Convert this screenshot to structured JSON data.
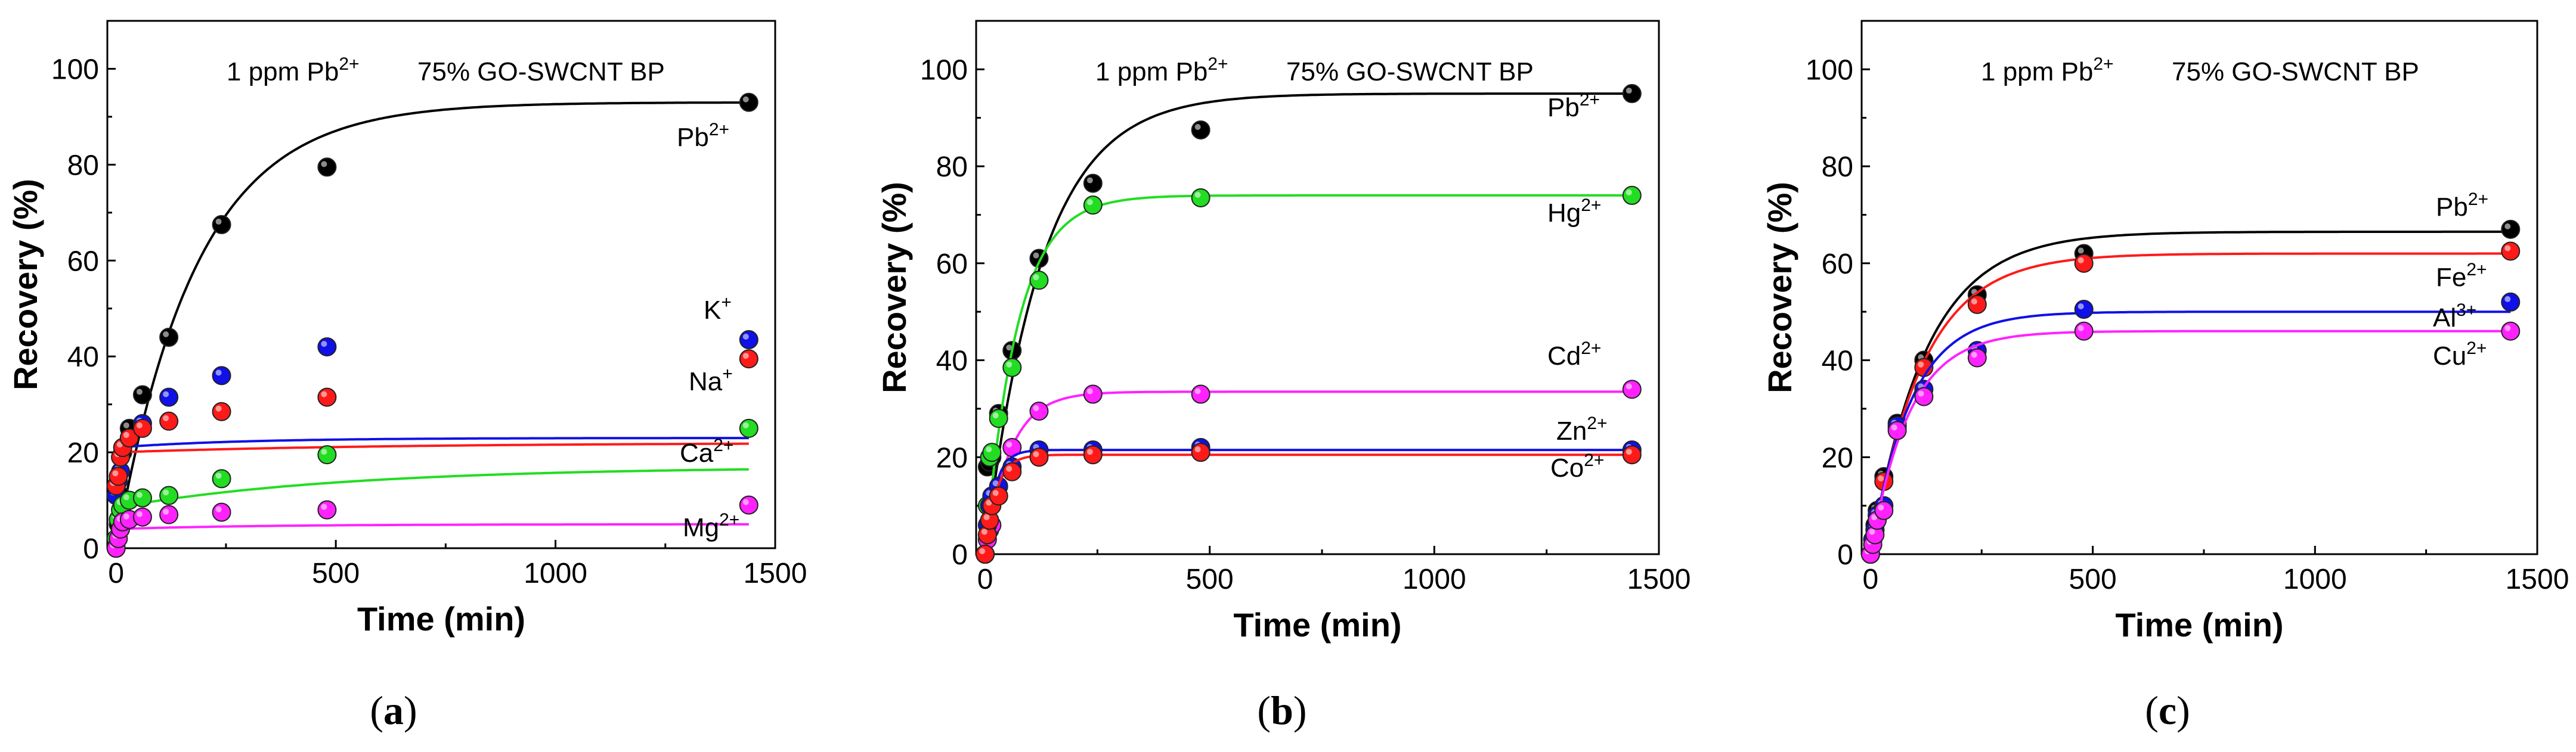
{
  "chart_data": [
    {
      "type": "scatter",
      "panel_label": "a",
      "annotation_left": "1 ppm Pb",
      "annotation_left_sup": "2+",
      "annotation_right": "75% GO-SWCNT BP",
      "xlabel": "Time (min)",
      "ylabel": "Recovery (%)",
      "xlim": [
        -20,
        1500
      ],
      "ylim": [
        0,
        110
      ],
      "xticks": [
        0,
        500,
        1000,
        1500
      ],
      "yticks": [
        0,
        20,
        40,
        60,
        80,
        100
      ],
      "x": [
        0,
        5,
        10,
        15,
        30,
        60,
        120,
        240,
        480,
        1440
      ],
      "series": [
        {
          "name": "Pb",
          "charge": "2+",
          "color": "#000000",
          "values": [
            0,
            5,
            11,
            20,
            25,
            32,
            44,
            67.5,
            79.5,
            93
          ],
          "fit": [
            93,
            0.0055,
            0
          ]
        },
        {
          "name": "K",
          "charge": "+",
          "color": "#1010e8",
          "values": [
            11,
            14,
            16,
            21,
            23,
            26,
            31.5,
            36,
            42,
            43.5
          ],
          "fit": [
            23,
            0.0035,
            21
          ]
        },
        {
          "name": "Na",
          "charge": "+",
          "color": "#ff1a1a",
          "values": [
            13,
            15,
            19,
            21,
            23,
            25,
            26.5,
            28.5,
            31.5,
            39.5
          ],
          "fit": [
            22,
            0.0016,
            20
          ]
        },
        {
          "name": "Ca",
          "charge": "2+",
          "color": "#22dd22",
          "values": [
            2,
            6,
            8,
            9,
            10,
            10.5,
            11,
            14.5,
            19.5,
            25
          ],
          "fit": [
            17,
            0.0019,
            8.5
          ]
        },
        {
          "name": "Mg",
          "charge": "2+",
          "color": "#ff22ff",
          "values": [
            0,
            2,
            4,
            5.5,
            6,
            6.5,
            7,
            7.5,
            8,
            9
          ],
          "fit": [
            5,
            0.003,
            4
          ]
        }
      ]
    },
    {
      "type": "scatter",
      "panel_label": "b",
      "annotation_left": "1 ppm Pb",
      "annotation_left_sup": "2+",
      "annotation_right": "75% GO-SWCNT BP",
      "xlabel": "Time (min)",
      "ylabel": "Recovery (%)",
      "xlim": [
        -20,
        1500
      ],
      "ylim": [
        0,
        110
      ],
      "xticks": [
        0,
        500,
        1000,
        1500
      ],
      "yticks": [
        0,
        20,
        40,
        60,
        80,
        100
      ],
      "x": [
        0,
        5,
        10,
        15,
        30,
        60,
        120,
        240,
        480,
        1440
      ],
      "series": [
        {
          "name": "Pb",
          "charge": "2+",
          "color": "#000000",
          "values": [
            0,
            18,
            19,
            20,
            29,
            42,
            61,
            76.5,
            87.5,
            95
          ],
          "fit": [
            95,
            0.008,
            0
          ]
        },
        {
          "name": "Hg",
          "charge": "2+",
          "color": "#22dd22",
          "values": [
            0,
            10,
            20,
            21,
            28,
            38.5,
            56.5,
            72,
            73.5,
            74
          ],
          "fit": [
            74,
            0.014,
            0
          ]
        },
        {
          "name": "Cd",
          "charge": "2+",
          "color": "#ff22ff",
          "values": [
            0,
            3,
            5,
            6,
            12,
            22,
            29.5,
            33,
            33,
            34
          ],
          "fit": [
            33.5,
            0.018,
            0
          ]
        },
        {
          "name": "Zn",
          "charge": "2+",
          "color": "#1010e8",
          "values": [
            0,
            6,
            10,
            12,
            14,
            18,
            21.5,
            21.5,
            22,
            21.5
          ],
          "fit": [
            21.5,
            0.045,
            0
          ]
        },
        {
          "name": "Co",
          "charge": "2+",
          "color": "#ff1a1a",
          "values": [
            0,
            4,
            7,
            10,
            12,
            17,
            20,
            20.5,
            21,
            20.5
          ],
          "fit": [
            20.5,
            0.04,
            0
          ]
        }
      ]
    },
    {
      "type": "scatter",
      "panel_label": "c",
      "annotation_left": "1 ppm Pb",
      "annotation_left_sup": "2+",
      "annotation_right": "75% GO-SWCNT BP",
      "xlabel": "Time (min)",
      "ylabel": "Recovery (%)",
      "xlim": [
        -20,
        1500
      ],
      "ylim": [
        0,
        110
      ],
      "xticks": [
        0,
        500,
        1000,
        1500
      ],
      "yticks": [
        0,
        20,
        40,
        60,
        80,
        100
      ],
      "x": [
        0,
        5,
        10,
        15,
        30,
        60,
        120,
        240,
        480,
        1440
      ],
      "series": [
        {
          "name": "Pb",
          "charge": "2+",
          "color": "#000000",
          "values": [
            0,
            3,
            6,
            9,
            16,
            27,
            40,
            53.5,
            62,
            67
          ],
          "fit": [
            66.5,
            0.008,
            0
          ]
        },
        {
          "name": "Fe",
          "charge": "2+",
          "color": "#ff1a1a",
          "values": [
            0,
            2,
            5,
            8,
            15,
            26,
            38.5,
            51.5,
            60,
            62.5
          ],
          "fit": [
            62,
            0.0085,
            0
          ]
        },
        {
          "name": "Al",
          "charge": "3+",
          "color": "#1010e8",
          "values": [
            0,
            3,
            5,
            8,
            10,
            26.5,
            34,
            42,
            50.5,
            52
          ],
          "fit": [
            50,
            0.011,
            0
          ]
        },
        {
          "name": "Cu",
          "charge": "2+",
          "color": "#ff22ff",
          "values": [
            0,
            2,
            4,
            7,
            9,
            25.5,
            32.5,
            40.5,
            46,
            46
          ],
          "fit": [
            46,
            0.0115,
            0
          ]
        }
      ]
    }
  ]
}
